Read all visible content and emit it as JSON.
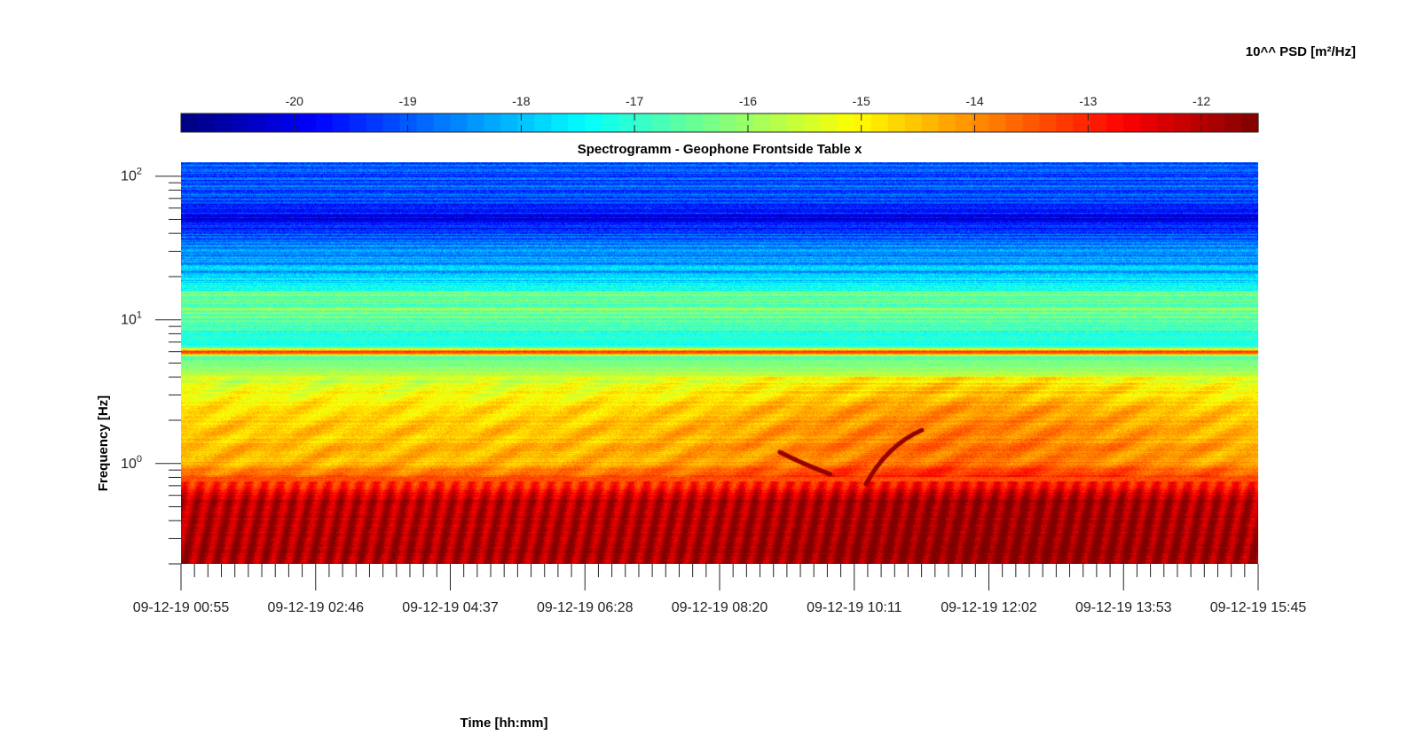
{
  "chart_data": {
    "type": "heatmap",
    "title": "Spectrogramm - Geophone Frontside Table x",
    "xlabel": "Time [hh:mm]",
    "ylabel": "Frequency [Hz]",
    "y_scale": "log",
    "ylim": [
      0.2,
      125
    ],
    "x_tick_labels": [
      "09-12-19 00:55",
      "09-12-19 02:46",
      "09-12-19 04:37",
      "09-12-19 06:28",
      "09-12-19 08:20",
      "09-12-19 10:11",
      "09-12-19 12:02",
      "09-12-19 13:53",
      "09-12-19 15:45"
    ],
    "y_ticks": [
      {
        "base": "10",
        "exp": "2",
        "value": 100
      },
      {
        "base": "10",
        "exp": "1",
        "value": 10
      },
      {
        "base": "10",
        "exp": "0",
        "value": 1
      }
    ],
    "colorbar": {
      "label": "10^^ PSD [m²/Hz]",
      "placement": "top",
      "colormap": "jet",
      "range": [
        -21,
        -11.5
      ],
      "ticks": [
        -20,
        -19,
        -18,
        -17,
        -16,
        -15,
        -14,
        -13,
        -12
      ],
      "tick_labels": [
        "-20",
        "-19",
        "-18",
        "-17",
        "-16",
        "-15",
        "-14",
        "-13",
        "-12"
      ]
    },
    "spectrum_profile": [
      {
        "f": 0.2,
        "level": -11.9
      },
      {
        "f": 0.55,
        "level": -12.0
      },
      {
        "f": 0.75,
        "level": -13.2
      },
      {
        "f": 1.0,
        "level": -14.4
      },
      {
        "f": 1.5,
        "level": -14.5
      },
      {
        "f": 2.5,
        "level": -14.8
      },
      {
        "f": 4.0,
        "level": -15.6
      },
      {
        "f": 5.5,
        "level": -16.8
      },
      {
        "f": 6.0,
        "level": -12.8
      },
      {
        "f": 6.5,
        "level": -17.3
      },
      {
        "f": 9.0,
        "level": -16.8
      },
      {
        "f": 12.0,
        "level": -16.2
      },
      {
        "f": 15.0,
        "level": -16.6
      },
      {
        "f": 20.0,
        "level": -18.0
      },
      {
        "f": 30.0,
        "level": -18.5
      },
      {
        "f": 50.0,
        "level": -19.8
      },
      {
        "f": 80.0,
        "level": -19.0
      },
      {
        "f": 125.0,
        "level": -19.2
      }
    ],
    "grid": false,
    "legend": "none"
  }
}
